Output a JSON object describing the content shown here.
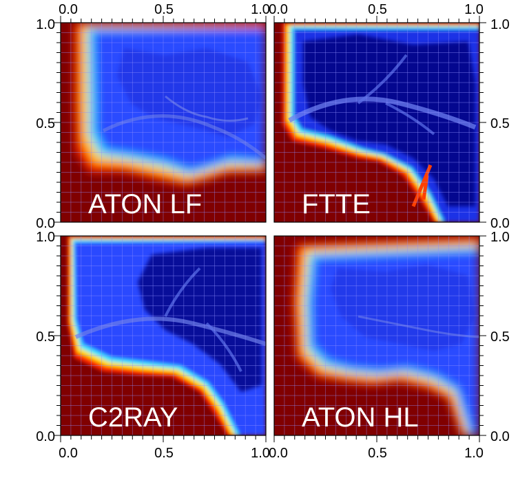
{
  "chart_data": [
    {
      "type": "heatmap",
      "panel": "top-left",
      "label": "ATON LF",
      "colormap": "jet",
      "xlim": [
        0.0,
        1.0
      ],
      "ylim": [
        0.0,
        1.0
      ],
      "grid": true
    },
    {
      "type": "heatmap",
      "panel": "top-right",
      "label": "FTTE",
      "colormap": "jet",
      "xlim": [
        0.0,
        1.0
      ],
      "ylim": [
        0.0,
        1.0
      ],
      "grid": true
    },
    {
      "type": "heatmap",
      "panel": "bottom-left",
      "label": "C2RAY",
      "colormap": "jet",
      "xlim": [
        0.0,
        1.0
      ],
      "ylim": [
        0.0,
        1.0
      ],
      "grid": true
    },
    {
      "type": "heatmap",
      "panel": "bottom-right",
      "label": "ATON HL",
      "colormap": "jet",
      "xlim": [
        0.0,
        1.0
      ],
      "ylim": [
        0.0,
        1.0
      ],
      "grid": true
    }
  ],
  "axes": {
    "top_x_ticks": [
      "0.0",
      "0.5",
      "1.0",
      "0.0",
      "0.5",
      "1.0"
    ],
    "bottom_x_ticks": [
      "0.0",
      "0.5",
      "1.0",
      "0.0",
      "0.5",
      "1.0"
    ],
    "left_y_ticks_top": [
      "1.0",
      "0.5",
      "0.0"
    ],
    "left_y_ticks_bottom": [
      "1.0",
      "0.5",
      "0.0"
    ],
    "right_y_ticks_top": [
      "1.0",
      "0.5",
      "0.0"
    ],
    "right_y_ticks_bottom": [
      "1.0",
      "0.5",
      "0.0"
    ]
  },
  "colors": {
    "dark_red": "#800000",
    "red": "#d40000",
    "orange": "#ff8000",
    "yellow": "#ffff40",
    "cyan": "#40e8ff",
    "light_blue": "#3d6bff",
    "blue": "#1f33e6",
    "navy": "#000080"
  }
}
